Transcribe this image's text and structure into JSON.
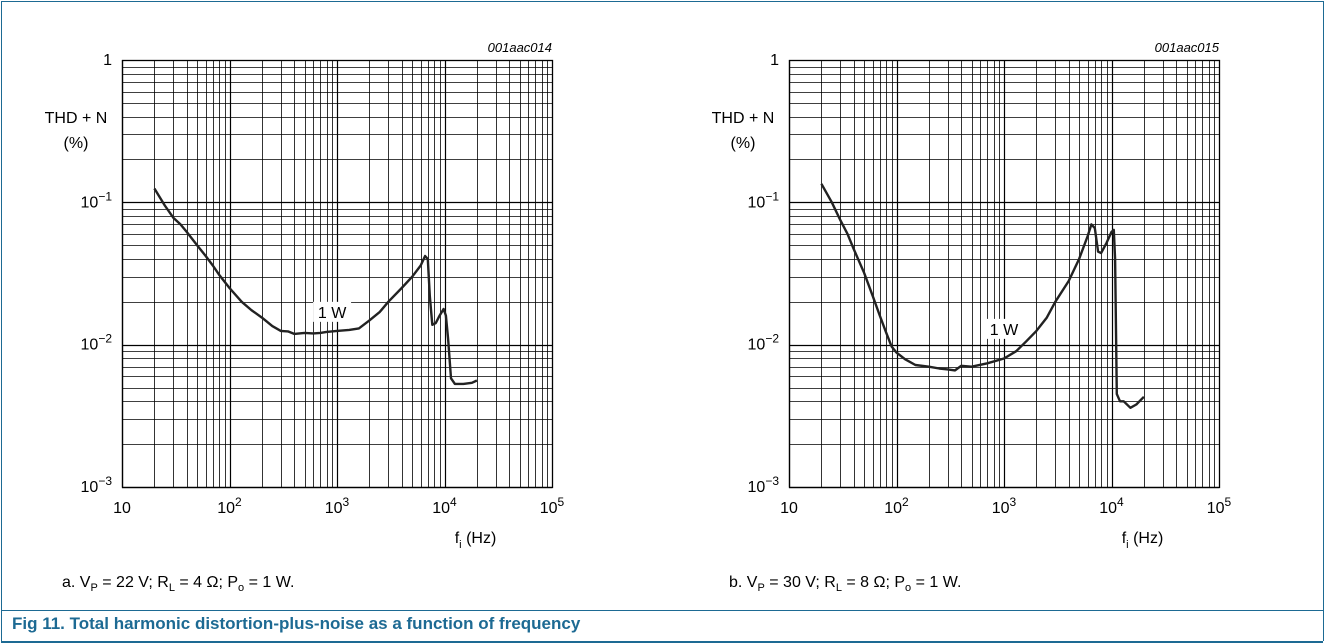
{
  "chart_data": [
    {
      "type": "line",
      "id_label": "001aac014",
      "ylabel_line1": "THD + N",
      "ylabel_line2": "(%)",
      "xlabel": "f",
      "xlabel_sub": "i",
      "xlabel_unit": " (Hz)",
      "xscale": "log",
      "yscale": "log",
      "xlim": [
        10,
        100000
      ],
      "ylim": [
        0.001,
        1
      ],
      "grid": true,
      "x_ticks": [
        {
          "value": 10,
          "base": "10",
          "exp": ""
        },
        {
          "value": 100,
          "base": "10",
          "exp": "2"
        },
        {
          "value": 1000,
          "base": "10",
          "exp": "3"
        },
        {
          "value": 10000,
          "base": "10",
          "exp": "4"
        },
        {
          "value": 100000,
          "base": "10",
          "exp": "5"
        }
      ],
      "y_ticks": [
        {
          "value": 1,
          "base": "1",
          "exp": ""
        },
        {
          "value": 0.1,
          "base": "10",
          "exp": "−1"
        },
        {
          "value": 0.01,
          "base": "10",
          "exp": "−2"
        },
        {
          "value": 0.001,
          "base": "10",
          "exp": "−3"
        }
      ],
      "series": [
        {
          "name": "1 W",
          "label_at": [
            900,
            0.0162
          ],
          "points": [
            [
              20,
              0.125
            ],
            [
              25,
              0.095
            ],
            [
              30,
              0.078
            ],
            [
              35,
              0.07
            ],
            [
              40,
              0.062
            ],
            [
              50,
              0.05
            ],
            [
              60,
              0.042
            ],
            [
              70,
              0.036
            ],
            [
              80,
              0.031
            ],
            [
              100,
              0.025
            ],
            [
              130,
              0.02
            ],
            [
              160,
              0.0175
            ],
            [
              200,
              0.0155
            ],
            [
              250,
              0.0135
            ],
            [
              300,
              0.0125
            ],
            [
              350,
              0.0124
            ],
            [
              400,
              0.0119
            ],
            [
              500,
              0.0121
            ],
            [
              600,
              0.012
            ],
            [
              700,
              0.0121
            ],
            [
              800,
              0.0123
            ],
            [
              1000,
              0.0125
            ],
            [
              1300,
              0.0127
            ],
            [
              1600,
              0.013
            ],
            [
              2000,
              0.0148
            ],
            [
              2500,
              0.017
            ],
            [
              3000,
              0.02
            ],
            [
              4000,
              0.025
            ],
            [
              5000,
              0.03
            ],
            [
              6000,
              0.036
            ],
            [
              6600,
              0.042
            ],
            [
              7000,
              0.04
            ],
            [
              7300,
              0.022
            ],
            [
              7700,
              0.0138
            ],
            [
              8300,
              0.0142
            ],
            [
              9000,
              0.016
            ],
            [
              9800,
              0.0178
            ],
            [
              10300,
              0.016
            ],
            [
              10800,
              0.011
            ],
            [
              11500,
              0.0058
            ],
            [
              12500,
              0.0053
            ],
            [
              15000,
              0.0053
            ],
            [
              18000,
              0.0054
            ],
            [
              20000,
              0.0056
            ]
          ]
        }
      ]
    },
    {
      "type": "line",
      "id_label": "001aac015",
      "ylabel_line1": "THD + N",
      "ylabel_line2": "(%)",
      "xlabel": "f",
      "xlabel_sub": "i",
      "xlabel_unit": " (Hz)",
      "xscale": "log",
      "yscale": "log",
      "xlim": [
        10,
        100000
      ],
      "ylim": [
        0.001,
        1
      ],
      "grid": true,
      "x_ticks": [
        {
          "value": 10,
          "base": "10",
          "exp": ""
        },
        {
          "value": 100,
          "base": "10",
          "exp": "2"
        },
        {
          "value": 1000,
          "base": "10",
          "exp": "3"
        },
        {
          "value": 10000,
          "base": "10",
          "exp": "4"
        },
        {
          "value": 100000,
          "base": "10",
          "exp": "5"
        }
      ],
      "y_ticks": [
        {
          "value": 1,
          "base": "1",
          "exp": ""
        },
        {
          "value": 0.1,
          "base": "10",
          "exp": "−1"
        },
        {
          "value": 0.01,
          "base": "10",
          "exp": "−2"
        },
        {
          "value": 0.001,
          "base": "10",
          "exp": "−3"
        }
      ],
      "series": [
        {
          "name": "1 W",
          "label_at": [
            1000,
            0.0123
          ],
          "points": [
            [
              20,
              0.135
            ],
            [
              25,
              0.1
            ],
            [
              30,
              0.075
            ],
            [
              35,
              0.06
            ],
            [
              40,
              0.047
            ],
            [
              50,
              0.032
            ],
            [
              60,
              0.022
            ],
            [
              70,
              0.016
            ],
            [
              80,
              0.0122
            ],
            [
              90,
              0.0097
            ],
            [
              100,
              0.0088
            ],
            [
              120,
              0.0079
            ],
            [
              150,
              0.0072
            ],
            [
              200,
              0.007
            ],
            [
              250,
              0.0068
            ],
            [
              300,
              0.0067
            ],
            [
              350,
              0.0066
            ],
            [
              400,
              0.0071
            ],
            [
              500,
              0.007
            ],
            [
              700,
              0.0074
            ],
            [
              1000,
              0.008
            ],
            [
              1300,
              0.009
            ],
            [
              1600,
              0.0105
            ],
            [
              2000,
              0.0125
            ],
            [
              2500,
              0.0155
            ],
            [
              3000,
              0.02
            ],
            [
              4000,
              0.028
            ],
            [
              5000,
              0.04
            ],
            [
              6000,
              0.058
            ],
            [
              6500,
              0.07
            ],
            [
              7000,
              0.066
            ],
            [
              7500,
              0.045
            ],
            [
              8000,
              0.044
            ],
            [
              9000,
              0.052
            ],
            [
              10000,
              0.062
            ],
            [
              10500,
              0.064
            ],
            [
              10800,
              0.04
            ],
            [
              11200,
              0.0045
            ],
            [
              12000,
              0.004
            ],
            [
              13000,
              0.004
            ],
            [
              15000,
              0.0036
            ],
            [
              17000,
              0.0038
            ],
            [
              20000,
              0.0043
            ]
          ]
        }
      ]
    }
  ],
  "captions": {
    "a": {
      "prefix": "a.   V",
      "vp_sub": "P",
      "vp_val": " = 22 V; R",
      "rl_sub": "L",
      "rl_val": " = 4 Ω; P",
      "po_sub": "o",
      "po_val": " = 1 W."
    },
    "b": {
      "prefix": "b.   V",
      "vp_sub": "P",
      "vp_val": " = 30 V; R",
      "rl_sub": "L",
      "rl_val": " = 8 Ω; P",
      "po_sub": "o",
      "po_val": " = 1 W."
    }
  },
  "figure_caption": "Fig 11.  Total harmonic distortion-plus-noise as a function of frequency",
  "colors": {
    "accent": "#1d6a93",
    "grid": "#000000",
    "curve": "#222222"
  }
}
